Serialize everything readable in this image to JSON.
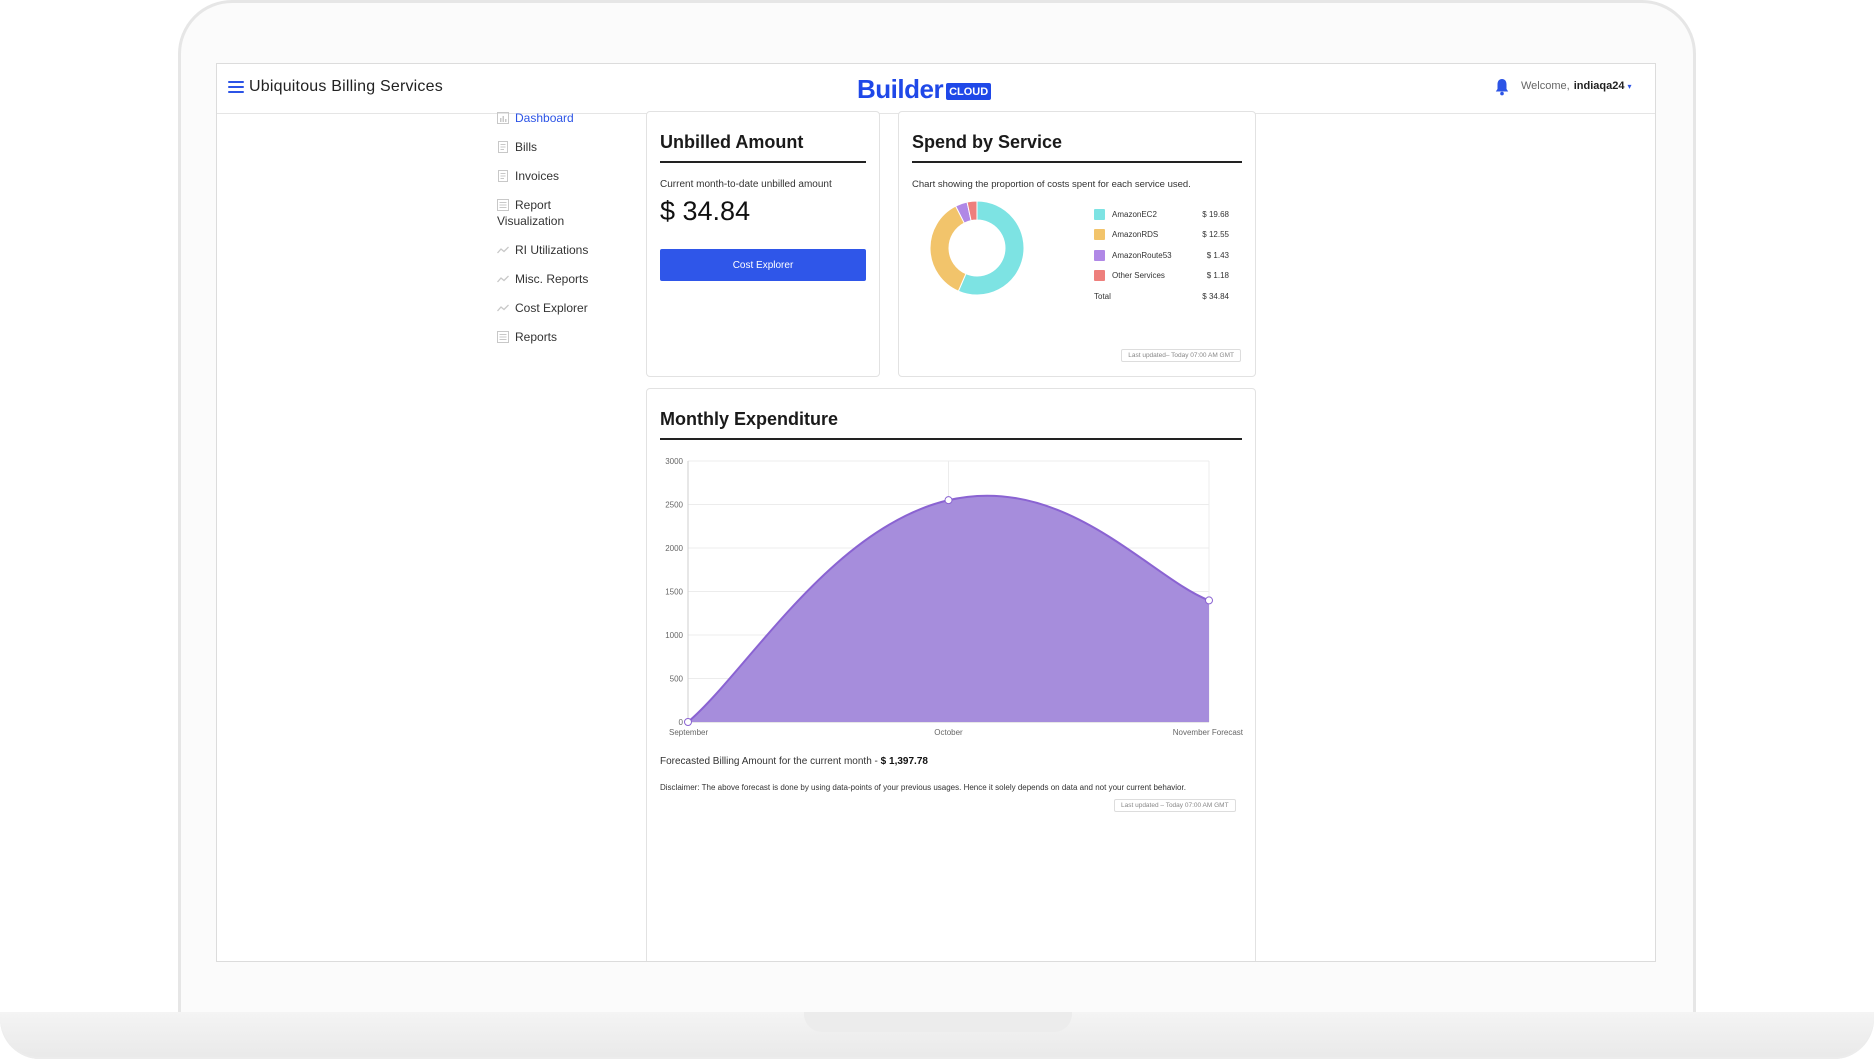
{
  "header": {
    "app_title": "Ubiquitous Billing Services",
    "logo_text": "Builder",
    "logo_badge": "CLOUD",
    "welcome_label": "Welcome,",
    "username": "indiaqa24",
    "caret": "▾"
  },
  "sidebar": {
    "items": [
      {
        "label": "Dashboard",
        "icon": "dashboard-icon",
        "active": true
      },
      {
        "label": "Bills",
        "icon": "document-icon"
      },
      {
        "label": "Invoices",
        "icon": "document-icon"
      },
      {
        "label": "Report Visualization",
        "icon": "report-icon"
      },
      {
        "label": "RI Utilizations",
        "icon": "trend-icon"
      },
      {
        "label": "Misc. Reports",
        "icon": "trend-icon"
      },
      {
        "label": "Cost Explorer",
        "icon": "trend-icon"
      },
      {
        "label": "Reports",
        "icon": "report-icon"
      }
    ]
  },
  "unbilled": {
    "title": "Unbilled Amount",
    "label": "Current month-to-date unbilled amount",
    "amount": "$ 34.84",
    "button": "Cost Explorer"
  },
  "spend": {
    "title": "Spend by Service",
    "description": "Chart showing the proportion of costs spent for each service used.",
    "total_label": "Total",
    "total_value": "$ 34.84",
    "updated": "Last updated– Today 07:00 AM GMT"
  },
  "monthly": {
    "title": "Monthly Expenditure",
    "forecast_label": "Forecasted Billing Amount for the current month -",
    "forecast_value": "$ 1,397.78",
    "disclaimer": "Disclaimer: The above forecast is done by using data-points of your previous usages. Hence it solely depends on data and not your current behavior.",
    "updated": "Last updated – Today 07:00 AM GMT"
  },
  "colors": {
    "accent": "#2f56e9",
    "ec2": "#7de3e3",
    "rds": "#f2c46b",
    "route53": "#b088e6",
    "other": "#ee7f7c",
    "area_fill": "#a68ddc",
    "area_stroke": "#8a63d2"
  },
  "chart_data": [
    {
      "type": "pie",
      "variant": "donut",
      "categories": [
        "AmazonEC2",
        "AmazonRDS",
        "AmazonRoute53",
        "Other Services"
      ],
      "values": [
        19.68,
        12.55,
        1.43,
        1.18
      ],
      "value_labels": [
        "$ 19.68",
        "$ 12.55",
        "$ 1.43",
        "$ 1.18"
      ],
      "legend": "right"
    },
    {
      "type": "area",
      "categories": [
        "September",
        "October",
        "November Forecast"
      ],
      "values": [
        0,
        2550,
        1397.78
      ],
      "ylim": [
        0,
        3000
      ],
      "yticks": [
        0,
        500,
        1000,
        1500,
        2000,
        2500,
        3000
      ],
      "grid": true
    }
  ]
}
